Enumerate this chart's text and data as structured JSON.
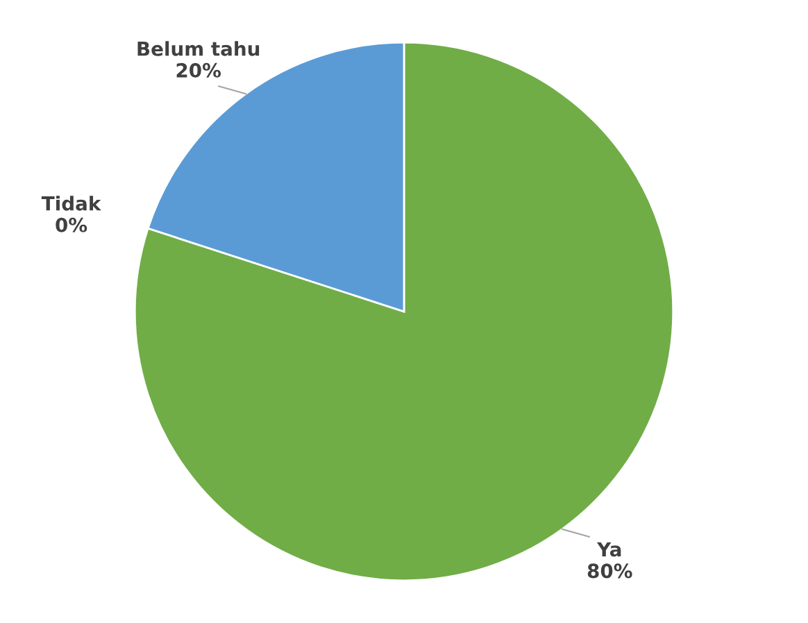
{
  "chart_data": {
    "type": "pie",
    "categories": [
      "Ya",
      "Tidak",
      "Belum tahu"
    ],
    "values": [
      80,
      0,
      20
    ],
    "colors": [
      "#70ad47",
      "#a5a5a5",
      "#5b9bd5"
    ],
    "value_labels": [
      "80%",
      "0%",
      "20%"
    ]
  }
}
